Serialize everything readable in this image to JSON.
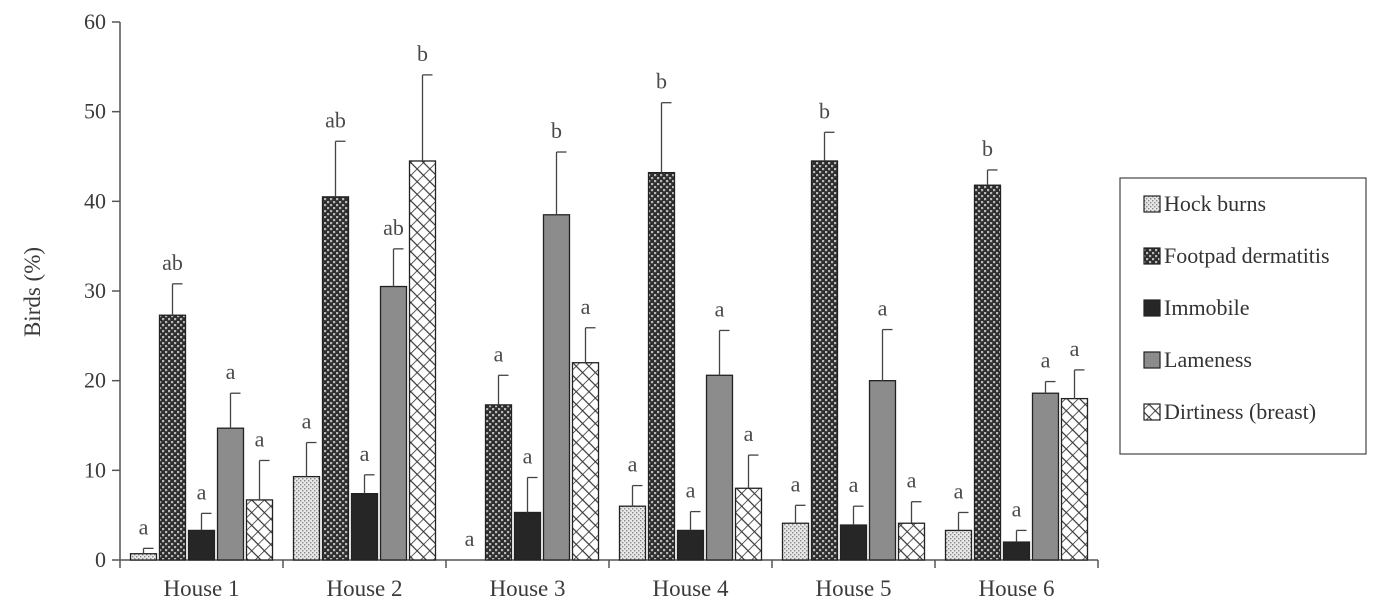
{
  "chart_data": {
    "type": "bar",
    "title": "",
    "xlabel": "",
    "ylabel": "Birds (%)",
    "ylim": [
      0,
      60
    ],
    "yticks": [
      0,
      10,
      20,
      30,
      40,
      50,
      60
    ],
    "grid": false,
    "legend_position": "right",
    "categories": [
      "House 1",
      "House 2",
      "House 3",
      "House 4",
      "House 5",
      "House 6"
    ],
    "series": [
      {
        "name": "Hock burns",
        "pattern": "dots-light",
        "values": [
          0.7,
          9.3,
          0,
          6.0,
          4.1,
          3.3
        ],
        "errors": [
          0.6,
          3.8,
          0,
          2.3,
          2.0,
          2.0
        ],
        "letters": [
          "a",
          "a",
          "a",
          "a",
          "a",
          "a"
        ]
      },
      {
        "name": "Footpad dermatitis",
        "pattern": "checker-dark",
        "values": [
          27.3,
          40.5,
          17.3,
          43.2,
          44.5,
          41.8
        ],
        "errors": [
          3.5,
          6.2,
          3.3,
          7.8,
          3.2,
          1.7
        ],
        "letters": [
          "ab",
          "ab",
          "a",
          "b",
          "b",
          "b"
        ]
      },
      {
        "name": "Immobile",
        "pattern": "solid-black",
        "values": [
          3.3,
          7.4,
          5.3,
          3.3,
          3.9,
          2.0
        ],
        "errors": [
          1.9,
          2.1,
          3.9,
          2.1,
          2.1,
          1.3
        ],
        "letters": [
          "a",
          "a",
          "a",
          "a",
          "a",
          "a"
        ]
      },
      {
        "name": "Lameness",
        "pattern": "solid-gray",
        "values": [
          14.7,
          30.5,
          38.5,
          20.6,
          20.0,
          18.6
        ],
        "errors": [
          3.9,
          4.2,
          7.0,
          5.0,
          5.7,
          1.3
        ],
        "letters": [
          "a",
          "ab",
          "b",
          "a",
          "a",
          "a"
        ]
      },
      {
        "name": "Dirtiness (breast)",
        "pattern": "diagonal-hatch",
        "values": [
          6.7,
          44.5,
          22.0,
          8.0,
          4.1,
          18.0
        ],
        "errors": [
          4.4,
          9.6,
          3.9,
          3.7,
          2.4,
          3.2
        ],
        "letters": [
          "a",
          "b",
          "a",
          "a",
          "a",
          "a"
        ]
      }
    ]
  }
}
